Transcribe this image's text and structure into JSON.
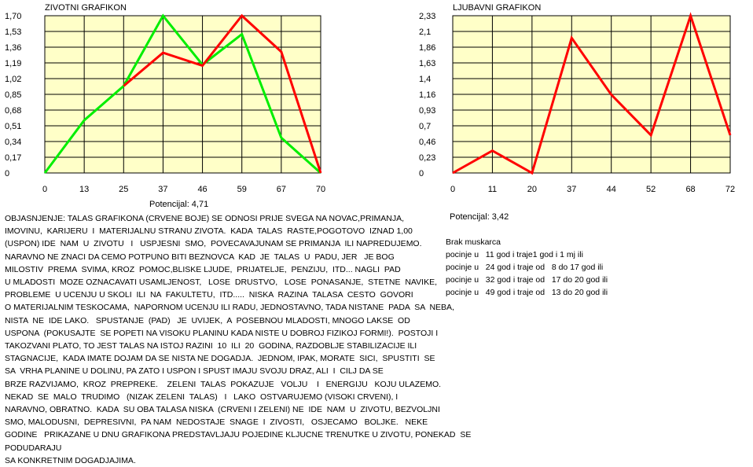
{
  "chart_data": [
    {
      "type": "line",
      "title": "ZIVOTNI GRAFIKON",
      "x": [
        0,
        13,
        25,
        37,
        46,
        59,
        67,
        70
      ],
      "yticks": [
        "0",
        "0,17",
        "0,34",
        "0,51",
        "0,68",
        "0,85",
        "1,02",
        "1,19",
        "1,36",
        "1,53",
        "1,70"
      ],
      "ylim": [
        0,
        1.7
      ],
      "grid": true,
      "series": [
        {
          "color": "#00ee00",
          "values": [
            0,
            0.57,
            0.94,
            1.7,
            1.17,
            1.5,
            0.38,
            0
          ]
        },
        {
          "color": "#ff0000",
          "values": [
            null,
            null,
            0.94,
            1.3,
            1.16,
            1.7,
            1.31,
            0
          ]
        }
      ],
      "footer": "Potencijal: 4,71"
    },
    {
      "type": "line",
      "title": "LJUBAVNI GRAFIKON",
      "x": [
        0,
        11,
        20,
        37,
        44,
        52,
        68,
        72
      ],
      "yticks": [
        "0",
        "0,23",
        "0,46",
        "0,7",
        "0,93",
        "1,16",
        "1,4",
        "1,63",
        "1,86",
        "2,1",
        "2,33"
      ],
      "ylim": [
        0,
        2.33
      ],
      "grid": true,
      "series": [
        {
          "color": "#ff0000",
          "values": [
            0,
            0.33,
            0,
            2.0,
            1.16,
            0.56,
            2.33,
            0.56
          ]
        }
      ],
      "footer": "Potencijal: 3,42"
    }
  ],
  "explanation": [
    "OBJASNJENJE: TALAS GRAFIKONA (CRVENE BOJE) SE ODNOSI PRIJE SVEGA NA NOVAC,PRIMANJA,",
    "IMOVINU,  KARIJERU  I  MATERIJALNU STRANU ZIVOTA.  KADA  TALAS  RASTE,POGOTOVO  IZNAD 1,00",
    "(USPON) IDE  NAM  U  ZIVOTU   I   USPJESNI  SMO,  POVECAVAJUNAM SE PRIMANJA  ILI NAPREDUJEMO.",
    "NARAVNO NE ZNACI DA CEMO POTPUNO BITI BEZNOVCA  KAD  JE  TALAS  U  PADU, JER   JE BOG",
    "MILOSTIV  PREMA  SVIMA, KROZ  POMOC,BLISKE LJUDE,  PRIJATELJE,  PENZIJU,  ITD... NAGLI  PAD",
    "U MLADOSTI  MOZE OZNACAVATI USAMLJENOST,   LOSE  DRUSTVO,   LOSE  PONASANJE,  STETNE  NAVIKE,",
    "PROBLEME  U UCENJU U SKOLI  ILI  NA  FAKULTETU,  ITD.....  NISKA  RAZINA  TALASA  CESTO  GOVORI",
    "O MATERIJALNIM TESKOCAMA,  NAPORNOM UCENJU ILI RADU, JEDNOSTAVNO, TADA NISTANE  PADA  SA  NEBA,",
    "NISTA  NE  IDE LAKO.   SPUSTANJE  (PAD)   JE  UVIJEK,  A  POSEBNOU MLADOSTI, MNOGO LAKSE  OD",
    "USPONA  (POKUSAJTE  SE POPETI NA VISOKU PLANINU KADA NISTE U DOBROJ FIZIKOJ FORMI!).  POSTOJI I",
    "TAKOZVANI PLATO, TO JEST TALAS NA ISTOJ RAZINI  10  ILI  20  GODINA, RAZDOBLJE STABILIZACIJE ILI",
    "STAGNACIJE,  KADA IMATE DOJAM DA SE NISTA NE DOGADJA.  JEDNOM, IPAK, MORATE  SICI,  SPUSTITI  SE",
    "SA  VRHA PLANINE U DOLINU, PA ZATO I USPON I SPUST IMAJU SVOJU DRAZ, ALI  I  CILJ DA SE",
    "BRZE RAZVIJAMO,  KROZ  PREPREKE.    ZELENI  TALAS  POKAZUJE   VOLJU    I   ENERGIJU   KOJU ULAZEMO.",
    "NEKAD  SE  MALO  TRUDIMO   (NIZAK ZELENI  TALAS)   I   LAKO  OSTVARUJEMO (VISOKI CRVENI), I",
    "NARAVNO, OBRATNO.  KADA  SU OBA TALASA NISKA  (CRVENI I ZELENI) NE  IDE  NAM  U  ZIVOTU, BEZVOLJNI",
    "SMO, MALODUSNI,  DEPRESIVNI,  PA NAM  NEDOSTAJE  SNAGE  I  ZIVOSTI,   OSJECAMO   BOLJKE.   NEKE",
    "GODINE   PRIKAZANE U DNU GRAFIKONA PREDSTAVLJAJU POJEDINE KLJUCNE TRENUTKE U ZIVOTU, PONEKAD  SE",
    "PODUDARAJU",
    "SA KONKRETNIM DOGADJAJIMA."
  ],
  "brak": {
    "title": "Brak muskarca",
    "lines": [
      "pocinje u   11 god i traje1 god i 1 mj ili",
      "pocinje u   24 god i traje od   8 do 17 god ili",
      "pocinje u   32 god i traje od   17 do 20 god ili",
      "pocinje u   49 god i traje od   13 do 20 god ili"
    ]
  },
  "colors": {
    "plot_bg": "#ffffc8",
    "grid": "#000000"
  }
}
